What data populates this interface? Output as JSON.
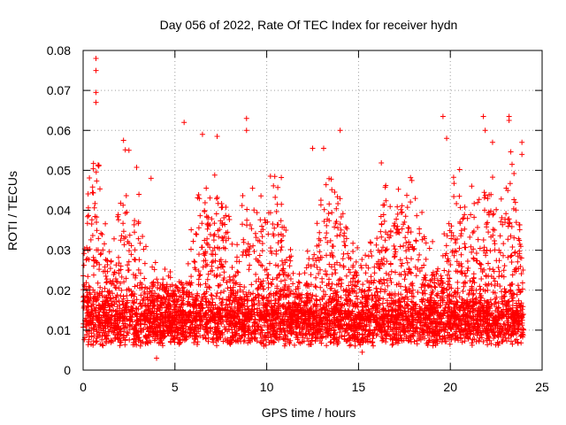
{
  "chart_data": {
    "type": "scatter",
    "title": "Day 056 of 2022, Rate Of TEC Index for receiver hydn",
    "xlabel": "GPS time / hours",
    "ylabel": "ROTI / TECUs",
    "xlim": [
      0,
      25
    ],
    "ylim": [
      0,
      0.08
    ],
    "xticks": [
      0,
      5,
      10,
      15,
      20,
      25
    ],
    "xtick_labels": [
      "0",
      "5",
      "10",
      "15",
      "20",
      "25"
    ],
    "yticks": [
      0,
      0.01,
      0.02,
      0.03,
      0.04,
      0.05,
      0.06,
      0.07,
      0.08
    ],
    "ytick_labels": [
      "0",
      "0.01",
      "0.02",
      "0.03",
      "0.04",
      "0.05",
      "0.06",
      "0.07",
      "0.08"
    ],
    "grid": true,
    "marker": "+",
    "color": "#ff0000",
    "series": [
      {
        "name": "ROTI",
        "description": "Dense scatter of ROTI samples from 0 to ~24 h. Baseline mostly 0.005–0.02 TECU, frequent bursts to 0.03–0.05, outliers up to ~0.078 near 0.7 h.",
        "x_range": [
          0,
          24
        ],
        "notable_points": [
          {
            "x": 0.7,
            "y": 0.078
          },
          {
            "x": 0.7,
            "y": 0.075
          },
          {
            "x": 0.7,
            "y": 0.0695
          },
          {
            "x": 0.7,
            "y": 0.067
          },
          {
            "x": 5.5,
            "y": 0.062
          },
          {
            "x": 8.9,
            "y": 0.063
          },
          {
            "x": 8.9,
            "y": 0.06
          },
          {
            "x": 6.5,
            "y": 0.059
          },
          {
            "x": 2.2,
            "y": 0.0575
          },
          {
            "x": 7.3,
            "y": 0.0585
          },
          {
            "x": 14.0,
            "y": 0.06
          },
          {
            "x": 19.6,
            "y": 0.0635
          },
          {
            "x": 21.8,
            "y": 0.0635
          },
          {
            "x": 23.2,
            "y": 0.0635
          },
          {
            "x": 23.2,
            "y": 0.0625
          },
          {
            "x": 19.8,
            "y": 0.058
          },
          {
            "x": 21.9,
            "y": 0.06
          },
          {
            "x": 22.3,
            "y": 0.057
          },
          {
            "x": 23.9,
            "y": 0.057
          },
          {
            "x": 23.9,
            "y": 0.054
          },
          {
            "x": 13.1,
            "y": 0.0555
          },
          {
            "x": 12.5,
            "y": 0.0555
          },
          {
            "x": 3.7,
            "y": 0.048
          },
          {
            "x": 4.0,
            "y": 0.003
          },
          {
            "x": 15.2,
            "y": 0.0045
          }
        ]
      }
    ]
  }
}
